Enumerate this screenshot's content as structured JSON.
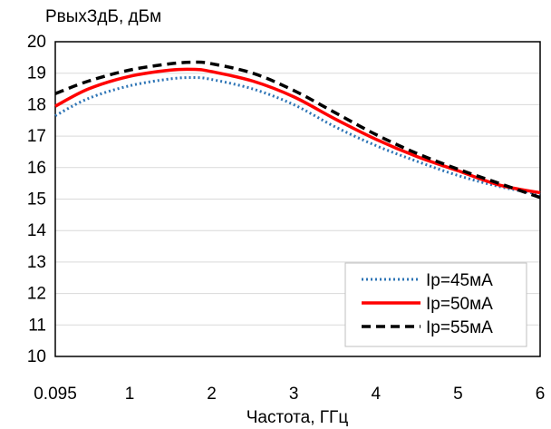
{
  "chart_data": {
    "type": "line",
    "title": "",
    "ylabel": "PвыхЗдБ, дБм",
    "xlabel": "Частота, ГГц",
    "xlim": [
      0.095,
      6
    ],
    "ylim": [
      10,
      20
    ],
    "x_ticks": [
      0.095,
      1,
      2,
      3,
      4,
      5,
      6
    ],
    "x_tick_labels": [
      "0.095",
      "1",
      "2",
      "3",
      "4",
      "5",
      "6"
    ],
    "y_ticks": [
      10,
      11,
      12,
      13,
      14,
      15,
      16,
      17,
      18,
      19,
      20
    ],
    "y_tick_labels": [
      "10",
      "11",
      "12",
      "13",
      "14",
      "15",
      "16",
      "17",
      "18",
      "19",
      "20"
    ],
    "grid": "horizontal",
    "legend_position": "bottom-right",
    "series": [
      {
        "name": "Ip=45мА",
        "color": "#2e75b6",
        "style": "dotted",
        "x": [
          0.095,
          0.5,
          1,
          1.5,
          1.8,
          2,
          2.5,
          3,
          3.5,
          4,
          4.5,
          5,
          5.5,
          6
        ],
        "y": [
          17.65,
          18.2,
          18.6,
          18.82,
          18.86,
          18.8,
          18.5,
          18.0,
          17.3,
          16.7,
          16.2,
          15.75,
          15.4,
          15.15
        ]
      },
      {
        "name": "Ip=50мА",
        "color": "#ff0000",
        "style": "solid",
        "x": [
          0.095,
          0.5,
          1,
          1.5,
          1.8,
          2,
          2.5,
          3,
          3.5,
          4,
          4.5,
          5,
          5.5,
          6
        ],
        "y": [
          17.95,
          18.5,
          18.9,
          19.1,
          19.12,
          19.05,
          18.75,
          18.25,
          17.55,
          16.9,
          16.35,
          15.9,
          15.45,
          15.2
        ]
      },
      {
        "name": "Ip=55мА",
        "color": "#000000",
        "style": "dashed",
        "x": [
          0.095,
          0.5,
          1,
          1.5,
          1.8,
          2,
          2.5,
          3,
          3.5,
          4,
          4.5,
          5,
          5.5,
          6
        ],
        "y": [
          18.35,
          18.75,
          19.1,
          19.3,
          19.35,
          19.3,
          19.0,
          18.45,
          17.75,
          17.05,
          16.45,
          15.95,
          15.5,
          15.05
        ]
      }
    ]
  }
}
